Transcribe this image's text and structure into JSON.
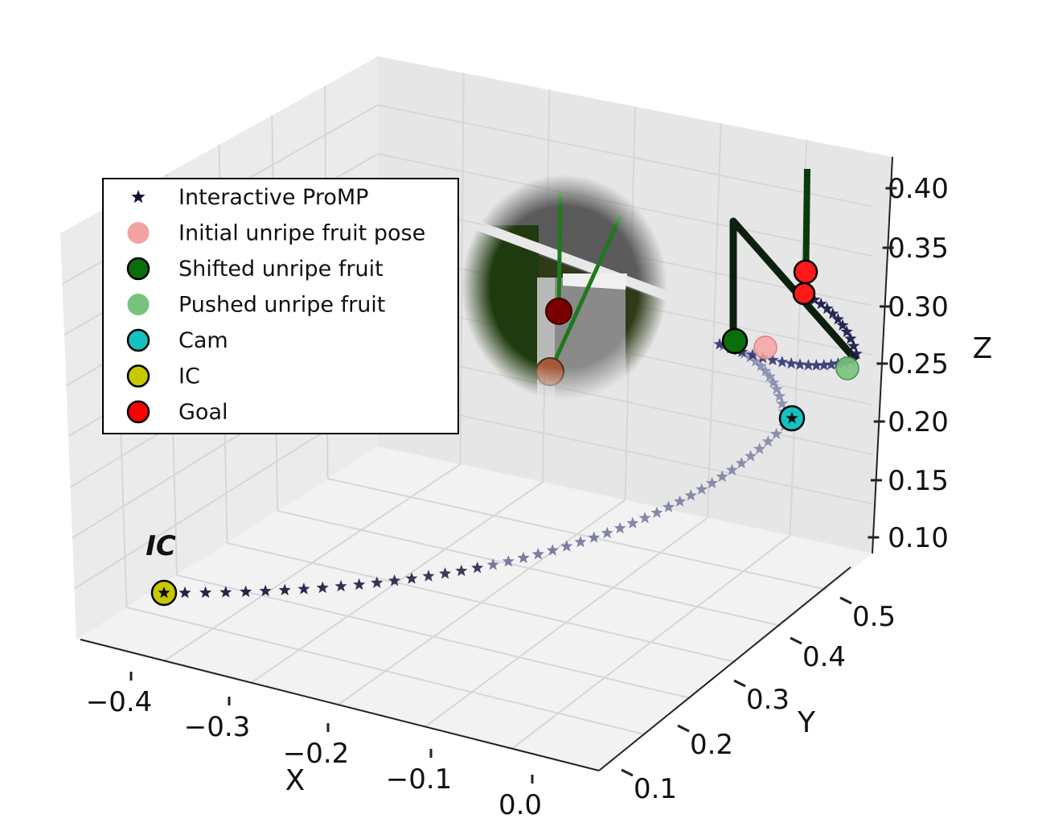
{
  "chart_data": {
    "type": "scatter",
    "projection": "3d",
    "xlabel": "X",
    "ylabel": "Y",
    "zlabel": "Z",
    "xlim": [
      -0.45,
      0.05
    ],
    "ylim": [
      0.05,
      0.55
    ],
    "zlim": [
      0.08,
      0.42
    ],
    "x_ticks": [
      "−0.4",
      "−0.3",
      "−0.2",
      "−0.1",
      "0.0"
    ],
    "y_ticks": [
      "0.1",
      "0.2",
      "0.3",
      "0.4",
      "0.5"
    ],
    "z_ticks": [
      "0.10",
      "0.15",
      "0.20",
      "0.25",
      "0.30",
      "0.35",
      "0.40"
    ],
    "grid": true,
    "legend_position": "upper-left",
    "legend": [
      {
        "label": "Interactive ProMP",
        "marker": "star",
        "color": "#111133"
      },
      {
        "label": "Initial unripe fruit pose",
        "marker": "circle",
        "color": "#f4a3a3"
      },
      {
        "label": "Shifted unripe fruit",
        "marker": "circle",
        "color": "#0a6e0a"
      },
      {
        "label": "Pushed unripe fruit",
        "marker": "circle",
        "color": "#79c27d"
      },
      {
        "label": "Cam",
        "marker": "circle",
        "color": "#13c1c1"
      },
      {
        "label": "IC",
        "marker": "circle",
        "color": "#c8c800"
      },
      {
        "label": "Goal",
        "marker": "circle",
        "color": "#ff0000"
      }
    ],
    "annotations": [
      "IC"
    ],
    "points": {
      "IC": {
        "x": -0.39,
        "y": 0.25,
        "z": 0.08
      },
      "Cam": {
        "x": 0.02,
        "y": 0.3,
        "z": 0.2
      },
      "Initial unripe fruit pose": {
        "x": -0.02,
        "y": 0.33,
        "z": 0.26
      },
      "Shifted unripe fruit": {
        "x": -0.05,
        "y": 0.36,
        "z": 0.265
      },
      "Pushed unripe fruit": {
        "x": 0.05,
        "y": 0.43,
        "z": 0.25
      },
      "Goal": [
        {
          "x": 0.04,
          "y": 0.4,
          "z": 0.325
        },
        {
          "x": 0.04,
          "y": 0.4,
          "z": 0.31
        }
      ]
    },
    "inset": "camera view of fruit"
  }
}
